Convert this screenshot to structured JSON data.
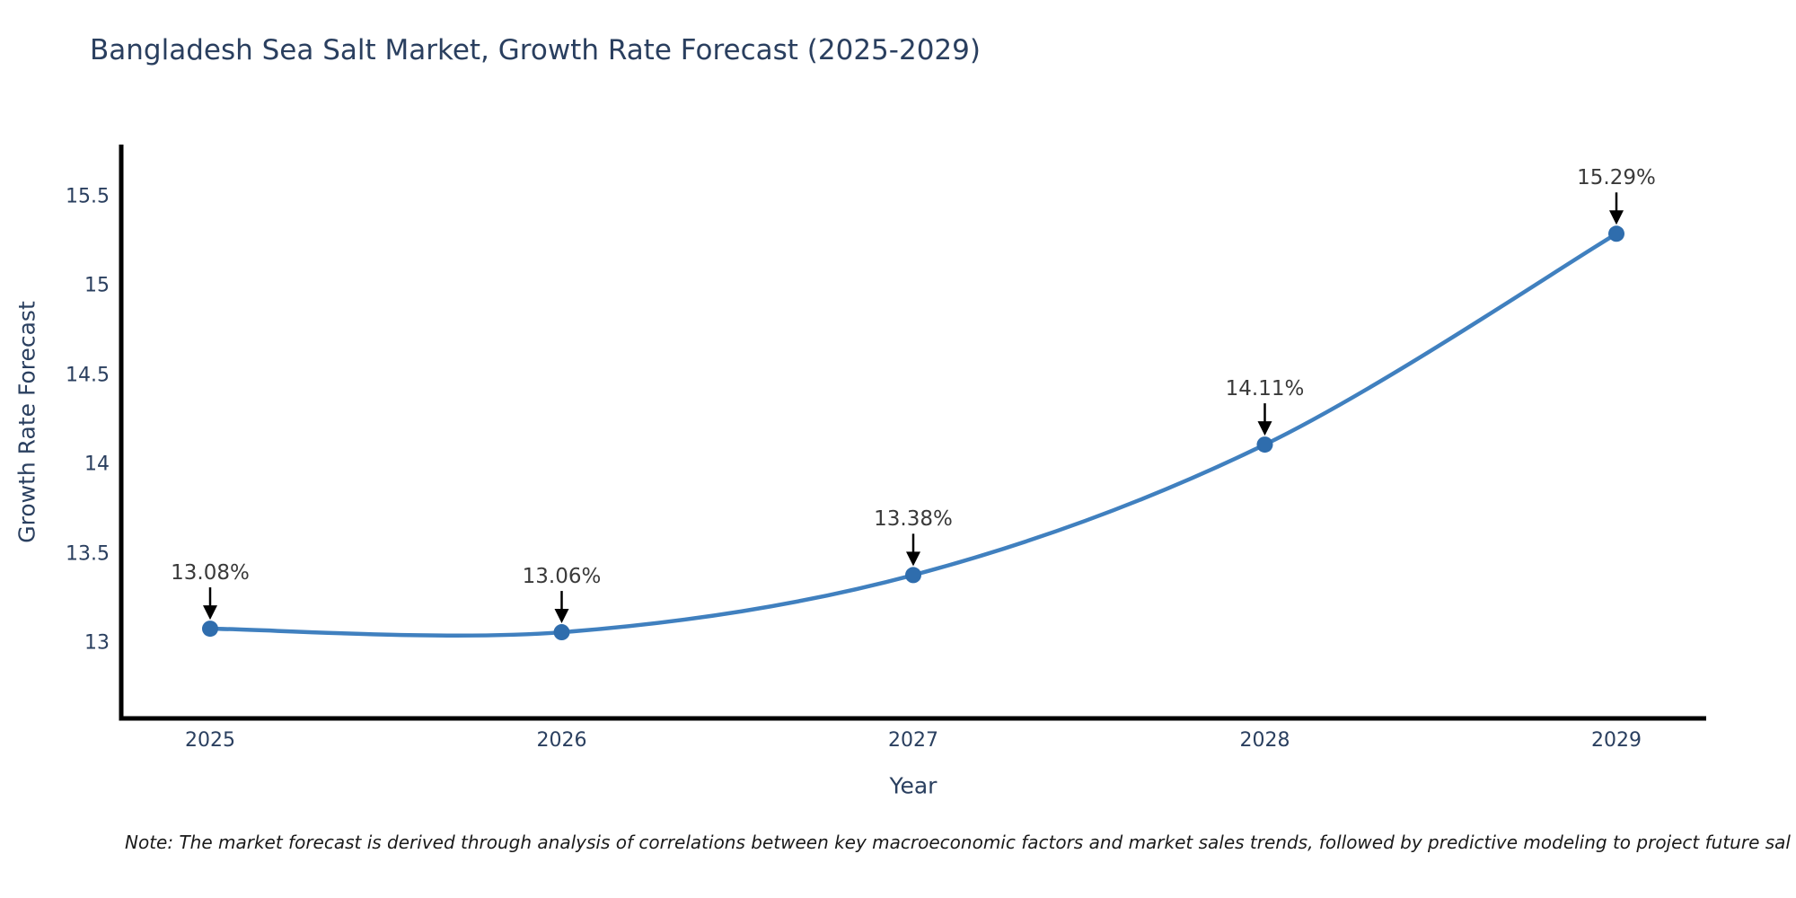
{
  "note": {
    "text": "Note: The market forecast is derived through analysis of correlations between key macroeconomic factors and market sales trends, followed by predictive modeling to project future sal"
  },
  "chart_data": {
    "type": "line",
    "title": "Bangladesh Sea Salt Market, Growth Rate Forecast (2025-2029)",
    "xlabel": "Year",
    "ylabel": "Growth Rate Forecast",
    "x": [
      2025,
      2026,
      2027,
      2028,
      2029
    ],
    "xtick_labels": [
      "2025",
      "2026",
      "2027",
      "2028",
      "2029"
    ],
    "series": [
      {
        "name": "Growth Rate Forecast",
        "values": [
          13.08,
          13.06,
          13.38,
          14.11,
          15.29
        ]
      }
    ],
    "point_labels": [
      "13.08%",
      "13.06%",
      "13.38%",
      "14.11%",
      "15.29%"
    ],
    "yticks": [
      13,
      13.5,
      14,
      14.5,
      15,
      15.5
    ],
    "ytick_labels": [
      "13",
      "13.5",
      "14",
      "14.5",
      "15",
      "15.5"
    ],
    "ylim": [
      12.58,
      15.79
    ],
    "xlim": [
      2024.74,
      2029.26
    ],
    "grid": false,
    "legend": "none",
    "line_shape": "spline",
    "annotation_arrows": true,
    "colors": {
      "line": "#4080bf",
      "marker": "#2f6dad",
      "spine": "#000000",
      "axis_text": "#2a3f5f",
      "annotation_text": "#3a3a3a",
      "arrow": "#000000",
      "background": "#ffffff"
    }
  }
}
